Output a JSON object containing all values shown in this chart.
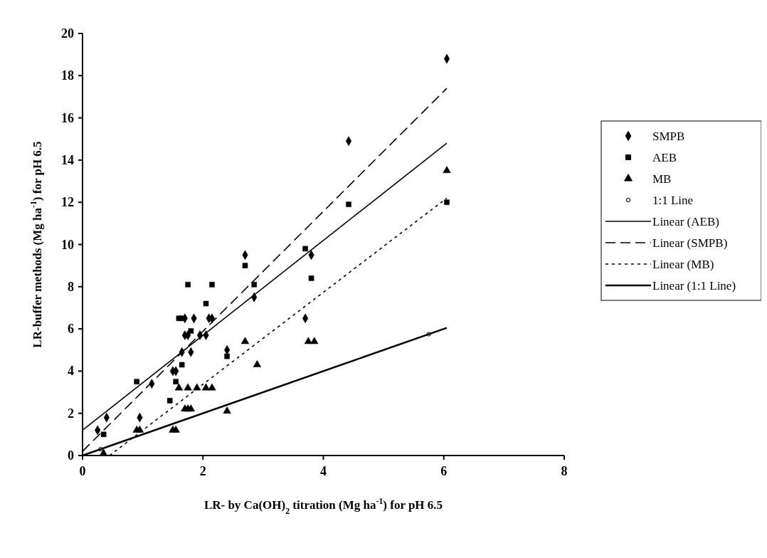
{
  "chart_data": {
    "type": "scatter",
    "xlabel": "LR- by Ca(OH)$_{2}$ titration (Mg ha$^{-1}$) for pH 6.5",
    "ylabel": "LR-buffer methods (Mg ha$^{-1}$) for pH 6.5",
    "xlim": [
      0,
      8
    ],
    "xticks": [
      0,
      2,
      4,
      6,
      8
    ],
    "ylim": [
      0,
      20
    ],
    "yticks": [
      0,
      2,
      4,
      6,
      8,
      10,
      12,
      14,
      16,
      18,
      20
    ],
    "grid": false,
    "legend": "right",
    "series": [
      {
        "name": "SMPB",
        "color": "#000000",
        "marker": "diamond",
        "x": [
          0.25,
          0.4,
          0.95,
          1.15,
          1.5,
          1.55,
          1.65,
          1.7,
          1.75,
          1.8,
          1.7,
          1.85,
          1.95,
          2.05,
          2.1,
          2.15,
          2.4,
          2.7,
          2.85,
          3.7,
          3.8,
          4.42,
          6.05
        ],
        "values": [
          1.2,
          1.8,
          1.8,
          3.4,
          4.0,
          4.0,
          4.9,
          5.7,
          5.7,
          4.9,
          6.5,
          6.5,
          5.7,
          5.7,
          6.5,
          6.5,
          5.0,
          9.5,
          7.5,
          6.5,
          9.5,
          14.9,
          18.8
        ]
      },
      {
        "name": "AEB",
        "color": "#000000",
        "marker": "square",
        "x": [
          0.35,
          0.9,
          1.45,
          1.55,
          1.65,
          1.6,
          1.65,
          1.75,
          1.8,
          2.05,
          2.15,
          2.4,
          2.7,
          2.85,
          3.7,
          3.8,
          4.42,
          6.05
        ],
        "values": [
          1.0,
          3.5,
          2.6,
          3.5,
          4.3,
          6.5,
          6.5,
          8.1,
          5.9,
          7.2,
          8.1,
          4.7,
          9.0,
          8.1,
          9.8,
          8.4,
          11.9,
          12.0
        ]
      },
      {
        "name": "MB",
        "color": "#000000",
        "marker": "triangle",
        "x": [
          0.35,
          0.9,
          0.95,
          1.5,
          1.55,
          1.6,
          1.7,
          1.75,
          1.8,
          1.75,
          1.9,
          2.05,
          2.15,
          2.4,
          2.7,
          2.9,
          3.75,
          3.85,
          6.05
        ],
        "values": [
          0.1,
          1.2,
          1.2,
          1.2,
          1.2,
          3.2,
          2.2,
          2.2,
          2.2,
          3.2,
          3.2,
          3.2,
          3.2,
          2.1,
          5.4,
          4.3,
          5.4,
          5.4,
          13.5
        ]
      },
      {
        "name": "1:1 Line",
        "color": "#000000",
        "marker": "circle",
        "x": [
          0.3,
          5.75
        ],
        "values": [
          0.3,
          5.75
        ]
      },
      {
        "name": "Linear (AEB)",
        "type": "line",
        "color": "#000000",
        "marker": "none",
        "line_style": "solid",
        "x": [
          0,
          6.05
        ],
        "values": [
          1.2,
          14.8
        ]
      },
      {
        "name": "Linear (SMPB)",
        "type": "line",
        "color": "#000000",
        "marker": "none",
        "line_style": "dashed",
        "x": [
          0,
          6.05
        ],
        "values": [
          0.2,
          17.4
        ]
      },
      {
        "name": "Linear (MB)",
        "type": "line",
        "color": "#000000",
        "marker": "none",
        "line_style": "dotted",
        "x": [
          0.45,
          6.05
        ],
        "values": [
          0,
          12.2
        ]
      },
      {
        "name": "Linear (1:1 Line)",
        "type": "line",
        "color": "#000000",
        "marker": "none",
        "line_style": "solid",
        "x": [
          0,
          6.05
        ],
        "values": [
          0,
          6.05
        ]
      }
    ]
  }
}
